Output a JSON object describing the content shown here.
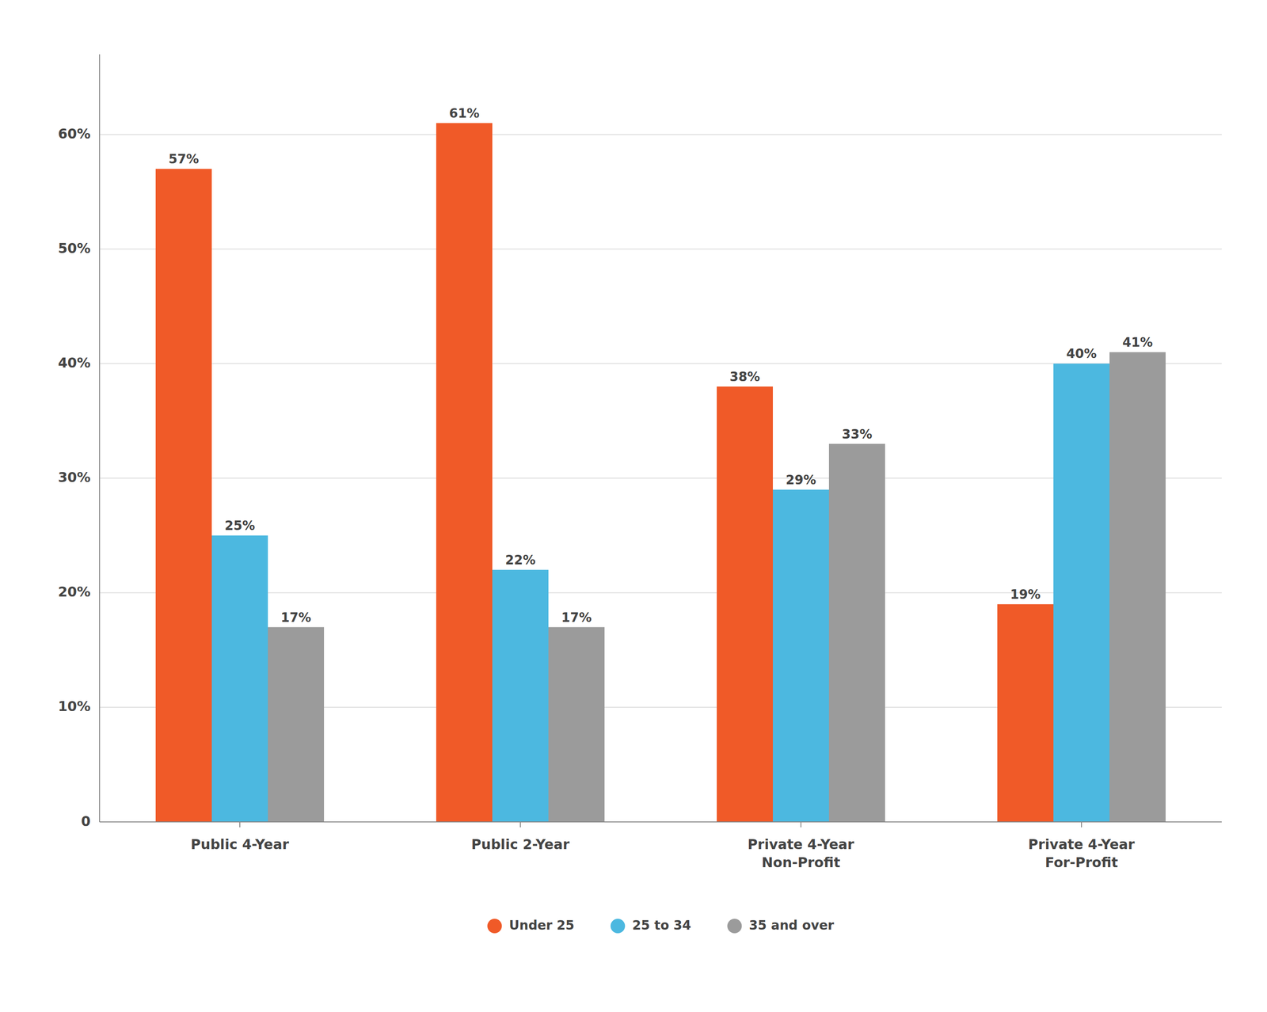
{
  "chart_data": {
    "type": "bar",
    "categories": [
      "Public 4-Year",
      "Public 2-Year",
      "Private 4-Year\nNon-Profit",
      "Private 4-Year\nFor-Profit"
    ],
    "series": [
      {
        "name": "Under 25",
        "color": "#F05A28",
        "values": [
          57,
          61,
          38,
          19
        ],
        "value_labels": [
          "57%",
          "61%",
          "38%",
          "19%"
        ]
      },
      {
        "name": "25 to 34",
        "color": "#4CB8E0",
        "values": [
          25,
          22,
          29,
          40
        ],
        "value_labels": [
          "25%",
          "22%",
          "29%",
          "40%"
        ]
      },
      {
        "name": "35 and over",
        "color": "#9B9B9B",
        "values": [
          17,
          17,
          33,
          41
        ],
        "value_labels": [
          "17%",
          "17%",
          "33%",
          "41%"
        ]
      }
    ],
    "ylim": [
      0,
      67
    ],
    "yticks": [
      0,
      {
        "value": 10,
        "label": "10%"
      },
      {
        "value": 20,
        "label": "20%"
      },
      {
        "value": 30,
        "label": "30%"
      },
      {
        "value": 40,
        "label": "40%"
      },
      {
        "value": 50,
        "label": "50%"
      },
      {
        "value": 60,
        "label": "60%"
      }
    ],
    "grid": true,
    "legend": "bottom",
    "data_labels": true
  }
}
